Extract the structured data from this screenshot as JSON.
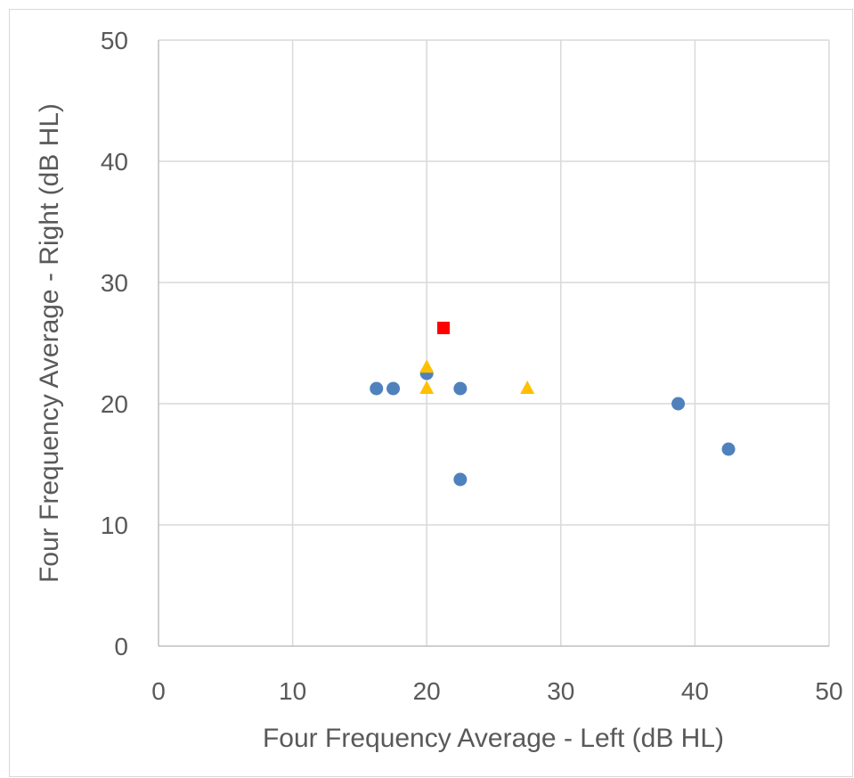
{
  "chart_data": {
    "type": "scatter",
    "title": "",
    "xlabel": "Four Frequency Average - Left (dB HL)",
    "ylabel": "Four Frequency Average - Right (dB HL)",
    "xlim": [
      0,
      50
    ],
    "ylim": [
      0,
      50
    ],
    "x_ticks": [
      "0",
      "10",
      "20",
      "30",
      "40",
      "50"
    ],
    "y_ticks": [
      "0",
      "10",
      "20",
      "30",
      "40",
      "50"
    ],
    "grid": true,
    "legend": "none",
    "series": [
      {
        "marker": "circle",
        "color": "#4f81bd",
        "points": [
          {
            "x": 16.25,
            "y": 21.25
          },
          {
            "x": 17.5,
            "y": 21.25
          },
          {
            "x": 20.0,
            "y": 22.5
          },
          {
            "x": 22.5,
            "y": 21.25
          },
          {
            "x": 22.5,
            "y": 13.75
          },
          {
            "x": 38.75,
            "y": 20.0
          },
          {
            "x": 42.5,
            "y": 16.25
          }
        ]
      },
      {
        "marker": "triangle",
        "color": "#ffc000",
        "points": [
          {
            "x": 20.0,
            "y": 23.0
          },
          {
            "x": 20.0,
            "y": 21.25
          },
          {
            "x": 27.5,
            "y": 21.25
          }
        ]
      },
      {
        "marker": "square",
        "color": "#ff0000",
        "points": [
          {
            "x": 21.25,
            "y": 26.25
          }
        ]
      }
    ]
  }
}
